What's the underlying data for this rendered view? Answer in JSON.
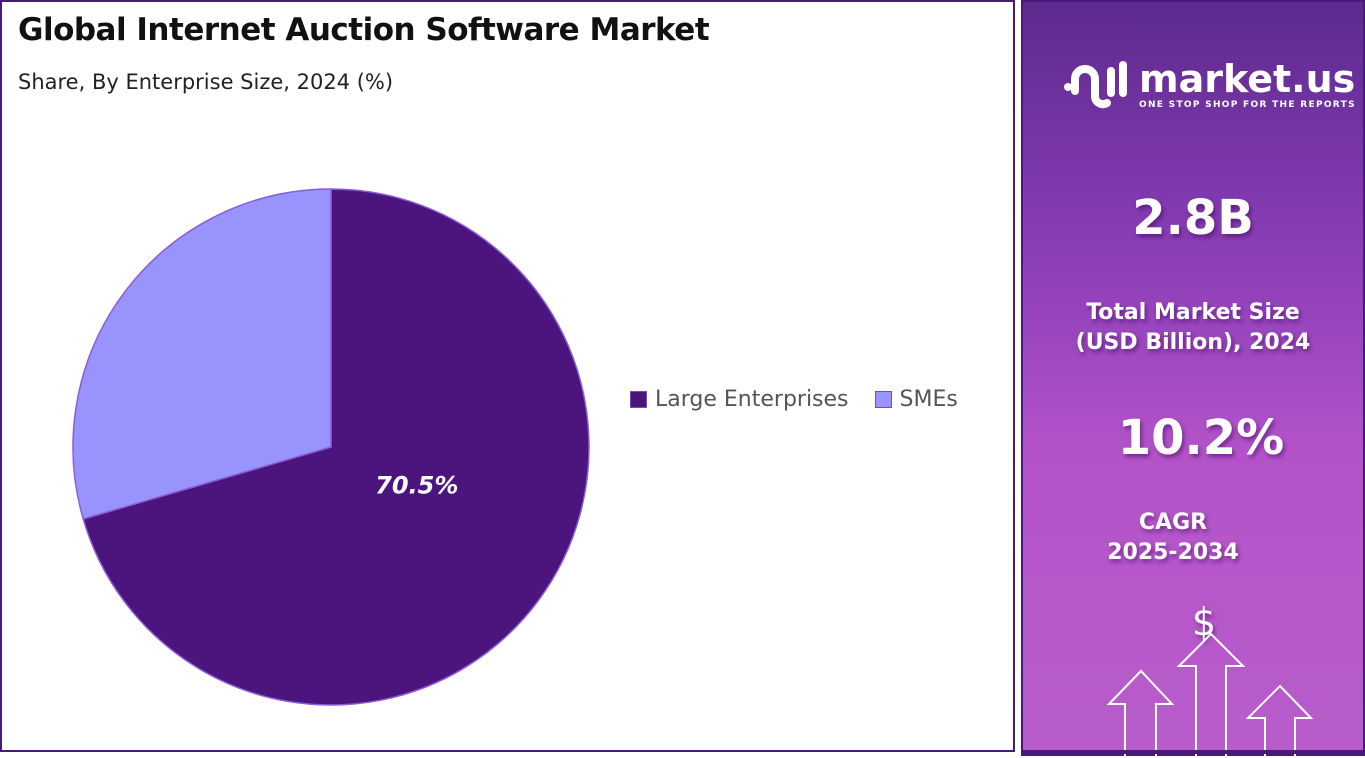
{
  "header": {
    "title": "Global Internet Auction Software Market",
    "subtitle": "Share, By Enterprise Size, 2024 (%)"
  },
  "chart_data": {
    "type": "pie",
    "title": "Global Internet Auction Software Market",
    "subtitle": "Share, By Enterprise Size, 2024 (%)",
    "categories": [
      "Large Enterprises",
      "SMEs"
    ],
    "values": [
      70.5,
      29.5
    ],
    "colors": [
      "#4c157e",
      "#9893fd"
    ],
    "data_labels": [
      "70.5%",
      ""
    ],
    "legend": "right"
  },
  "sidebar": {
    "brand": "market.us",
    "tagline": "ONE STOP SHOP FOR THE REPORTS",
    "market_size": "2.8B",
    "market_size_label_1": "Total Market Size",
    "market_size_label_2": "(USD Billion), 2024",
    "cagr": "10.2%",
    "cagr_label_1": "CAGR",
    "cagr_label_2": "2025-2034",
    "dollar": "$"
  }
}
